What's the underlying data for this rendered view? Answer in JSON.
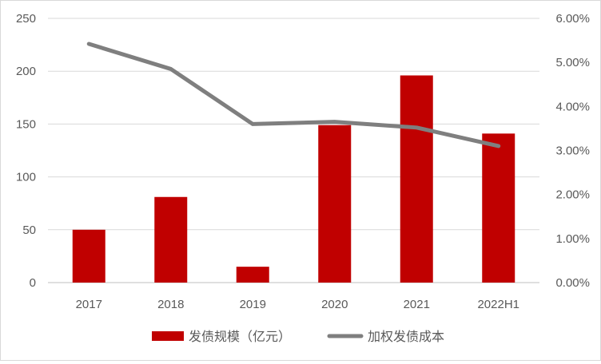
{
  "chart_data": {
    "type": "bar+line",
    "title": "",
    "categories": [
      "2017",
      "2018",
      "2019",
      "2020",
      "2021",
      "2022H1"
    ],
    "series": [
      {
        "name": "发债规模（亿元）",
        "type": "bar",
        "axis": "left",
        "color": "#c00000",
        "values": [
          50,
          81,
          15,
          149,
          196,
          141
        ]
      },
      {
        "name": "加权发债成本",
        "type": "line",
        "axis": "right",
        "color": "#7f7f7f",
        "values": [
          5.42,
          4.85,
          3.6,
          3.65,
          3.52,
          3.1
        ]
      }
    ],
    "y_left": {
      "range": [
        0,
        250
      ],
      "ticks": [
        "0",
        "50",
        "100",
        "150",
        "200",
        "250"
      ]
    },
    "y_right": {
      "range": [
        0,
        6
      ],
      "ticks": [
        "0.00%",
        "1.00%",
        "2.00%",
        "3.00%",
        "4.00%",
        "5.00%",
        "6.00%"
      ]
    },
    "grid": true,
    "legend_position": "bottom"
  }
}
